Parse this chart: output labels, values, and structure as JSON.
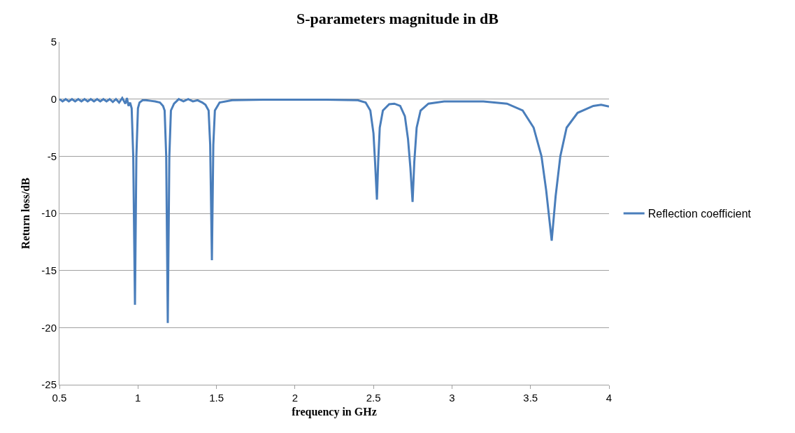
{
  "chart_data": {
    "type": "line",
    "title": "S-parameters magnitude in dB",
    "xlabel": "frequency in GHz",
    "ylabel": "Return loss/dB",
    "xlim": [
      0.5,
      4
    ],
    "xticks": [
      0.5,
      1,
      1.5,
      2,
      2.5,
      3,
      3.5,
      4
    ],
    "ylim": [
      -25,
      5
    ],
    "yticks": [
      -25,
      -20,
      -15,
      -10,
      -5,
      0,
      5
    ],
    "grid": "y",
    "legend": "right",
    "marker": "none",
    "line_style": "solid",
    "series": [
      {
        "name": "Reflection coefficient",
        "color": "#4a7ebb",
        "x": [
          0.5,
          0.52,
          0.54,
          0.56,
          0.58,
          0.6,
          0.62,
          0.64,
          0.66,
          0.68,
          0.7,
          0.72,
          0.74,
          0.76,
          0.78,
          0.8,
          0.82,
          0.84,
          0.86,
          0.88,
          0.9,
          0.92,
          0.93,
          0.94,
          0.95,
          0.96,
          0.97,
          0.981,
          0.99,
          1.0,
          1.01,
          1.03,
          1.05,
          1.08,
          1.11,
          1.14,
          1.16,
          1.17,
          1.18,
          1.19,
          1.2,
          1.21,
          1.23,
          1.26,
          1.29,
          1.32,
          1.35,
          1.38,
          1.41,
          1.43,
          1.45,
          1.46,
          1.471,
          1.48,
          1.49,
          1.52,
          1.6,
          1.8,
          2.0,
          2.2,
          2.4,
          2.45,
          2.48,
          2.5,
          2.51,
          2.522,
          2.53,
          2.54,
          2.56,
          2.6,
          2.633,
          2.67,
          2.7,
          2.72,
          2.735,
          2.749,
          2.76,
          2.775,
          2.8,
          2.85,
          2.95,
          3.2,
          3.35,
          3.45,
          3.52,
          3.57,
          3.6,
          3.635,
          3.66,
          3.69,
          3.73,
          3.8,
          3.9,
          3.95,
          4.0
        ],
        "values": [
          0,
          -0.2,
          0,
          -0.2,
          0,
          -0.2,
          0,
          -0.2,
          0,
          -0.2,
          0,
          -0.2,
          0,
          -0.2,
          0,
          -0.2,
          0,
          -0.25,
          0,
          -0.3,
          0.1,
          -0.4,
          0.1,
          -0.6,
          -0.3,
          -0.8,
          -5,
          -18,
          -5,
          -0.8,
          -0.3,
          -0.1,
          -0.1,
          -0.15,
          -0.2,
          -0.3,
          -0.6,
          -1,
          -5,
          -19.6,
          -5,
          -1,
          -0.4,
          0,
          -0.2,
          0,
          -0.2,
          -0.1,
          -0.3,
          -0.5,
          -1,
          -4,
          -14.1,
          -4,
          -1,
          -0.3,
          -0.1,
          -0.05,
          -0.05,
          -0.05,
          -0.1,
          -0.3,
          -1,
          -3,
          -5.5,
          -8.8,
          -5.5,
          -2.5,
          -1,
          -0.45,
          -0.4,
          -0.6,
          -1.5,
          -3.5,
          -6,
          -9,
          -5.5,
          -2.5,
          -1,
          -0.4,
          -0.2,
          -0.2,
          -0.4,
          -1,
          -2.5,
          -5,
          -8,
          -12.4,
          -8.5,
          -5,
          -2.5,
          -1.2,
          -0.6,
          -0.5,
          -0.65
        ]
      }
    ]
  }
}
